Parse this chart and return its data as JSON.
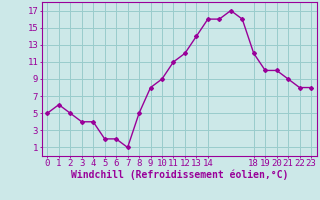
{
  "x": [
    0,
    1,
    2,
    3,
    4,
    5,
    6,
    7,
    8,
    9,
    10,
    11,
    12,
    13,
    14,
    15,
    16,
    17,
    18,
    19,
    20,
    21,
    22,
    23
  ],
  "y": [
    5,
    6,
    5,
    4,
    4,
    2,
    2,
    1,
    5,
    8,
    9,
    11,
    12,
    14,
    16,
    16,
    17,
    16,
    12,
    10,
    10,
    9,
    8,
    8
  ],
  "line_color": "#990099",
  "marker": "D",
  "marker_size": 2.0,
  "bg_color": "#cce8e8",
  "grid_color": "#99cccc",
  "xlabel": "Windchill (Refroidissement éolien,°C)",
  "xlabel_fontsize": 7,
  "ytick_values": [
    1,
    3,
    5,
    7,
    9,
    11,
    13,
    15,
    17
  ],
  "ytick_labels": [
    "1",
    "3",
    "5",
    "7",
    "9",
    "11",
    "13",
    "15",
    "17"
  ],
  "xtick_positions": [
    0,
    1,
    2,
    3,
    4,
    5,
    6,
    7,
    8,
    9,
    10,
    11,
    12,
    13,
    14,
    18,
    19,
    20,
    21,
    22,
    23
  ],
  "xtick_labels": [
    "0",
    "1",
    "2",
    "3",
    "4",
    "5",
    "6",
    "7",
    "8",
    "9",
    "10",
    "11",
    "12",
    "13",
    "14",
    "18",
    "19",
    "20",
    "21",
    "22",
    "23"
  ],
  "ylim": [
    0,
    18
  ],
  "xlim": [
    -0.5,
    23.5
  ],
  "tick_fontsize": 6.5,
  "line_width": 1.0
}
